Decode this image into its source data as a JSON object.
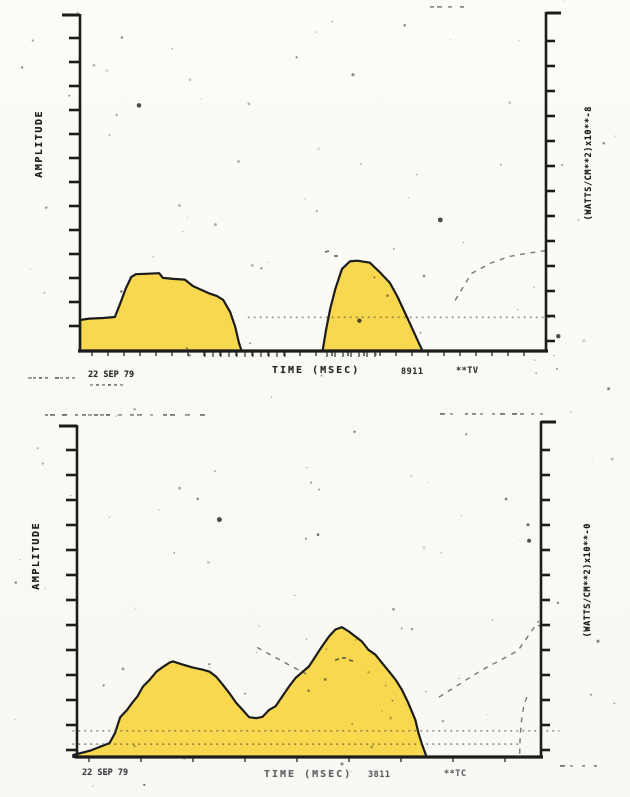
{
  "page": {
    "background": "#fbfaf5"
  },
  "scan": {
    "ink": "#1c1c1c",
    "fill": "#f7d84f",
    "faded_ink": "#62626a"
  },
  "chart_data": [
    {
      "type": "area",
      "left_axis_label": "AMPLITUDE",
      "right_axis_label": "(WATTS/CM**2)x10**-8",
      "x_axis_label": "TIME (MSEC)",
      "date_annotation": "22 SEP 79",
      "code_annotation_1": "8911",
      "code_annotation_2": "**TV",
      "x_range_percent": [
        0,
        100
      ],
      "amplitude_range_fraction": [
        0,
        1
      ],
      "grid": false,
      "series": [
        {
          "name": "pulse-1",
          "points": [
            [
              0,
              0.092
            ],
            [
              2,
              0.096
            ],
            [
              5,
              0.098
            ],
            [
              7.5,
              0.101
            ],
            [
              8.6,
              0.14
            ],
            [
              9.8,
              0.185
            ],
            [
              11,
              0.22
            ],
            [
              12,
              0.228
            ],
            [
              14,
              0.229
            ],
            [
              17,
              0.231
            ],
            [
              17.8,
              0.217
            ],
            [
              20,
              0.214
            ],
            [
              22.5,
              0.212
            ],
            [
              24.2,
              0.193
            ],
            [
              27.9,
              0.17
            ],
            [
              29.4,
              0.163
            ],
            [
              30.7,
              0.152
            ],
            [
              32.2,
              0.116
            ],
            [
              33.3,
              0.072
            ],
            [
              34.1,
              0.025
            ],
            [
              34.6,
              0.004
            ]
          ]
        },
        {
          "name": "pulse-2",
          "points": [
            [
              52.1,
              0.004
            ],
            [
              52.8,
              0.062
            ],
            [
              53.7,
              0.125
            ],
            [
              54.8,
              0.185
            ],
            [
              56.2,
              0.243
            ],
            [
              57.9,
              0.266
            ],
            [
              59.5,
              0.268
            ],
            [
              62.2,
              0.262
            ],
            [
              64.4,
              0.233
            ],
            [
              66.5,
              0.202
            ],
            [
              68.1,
              0.162
            ],
            [
              70.2,
              0.1
            ],
            [
              71.9,
              0.048
            ],
            [
              72.9,
              0.018
            ],
            [
              73.4,
              0.004
            ]
          ]
        }
      ],
      "faint_traces": [
        {
          "name": "background-level-dotted",
          "style": "dotted",
          "points": [
            [
              36,
              0.1
            ],
            [
              103,
              0.1
            ]
          ]
        },
        {
          "name": "rising-dashed-trace",
          "style": "dashed",
          "points": [
            [
              80.5,
              0.15
            ],
            [
              84,
              0.23
            ],
            [
              88,
              0.26
            ],
            [
              92,
              0.28
            ],
            [
              96,
              0.29
            ],
            [
              101,
              0.3
            ]
          ]
        }
      ]
    },
    {
      "type": "area",
      "left_axis_label": "AMPLITUDE",
      "right_axis_label": "(WATTS/CM**2)x10**-0",
      "x_axis_label": "TIME (MSEC)",
      "date_annotation": "22 SEP 79",
      "code_annotation_1": "3811",
      "code_annotation_2": "**TC",
      "x_range_percent": [
        0,
        100
      ],
      "amplitude_range_fraction": [
        0,
        1
      ],
      "grid": false,
      "series": [
        {
          "name": "double-pulse",
          "points": [
            [
              -0.8,
              0.006
            ],
            [
              3,
              0.02
            ],
            [
              7,
              0.042
            ],
            [
              8.2,
              0.072
            ],
            [
              9.3,
              0.12
            ],
            [
              10.8,
              0.142
            ],
            [
              12,
              0.165
            ],
            [
              13,
              0.182
            ],
            [
              14.2,
              0.212
            ],
            [
              15.7,
              0.233
            ],
            [
              17.2,
              0.258
            ],
            [
              18.6,
              0.272
            ],
            [
              20,
              0.285
            ],
            [
              20.7,
              0.288
            ],
            [
              22.7,
              0.279
            ],
            [
              24.9,
              0.27
            ],
            [
              27.1,
              0.263
            ],
            [
              28.6,
              0.257
            ],
            [
              30,
              0.242
            ],
            [
              31.4,
              0.218
            ],
            [
              32.8,
              0.193
            ],
            [
              34.3,
              0.163
            ],
            [
              35.7,
              0.142
            ],
            [
              37.1,
              0.12
            ],
            [
              38.6,
              0.117
            ],
            [
              40,
              0.121
            ],
            [
              41.4,
              0.142
            ],
            [
              42.8,
              0.153
            ],
            [
              44.2,
              0.182
            ],
            [
              45.7,
              0.212
            ],
            [
              47.1,
              0.238
            ],
            [
              48.5,
              0.255
            ],
            [
              50,
              0.273
            ],
            [
              51.4,
              0.303
            ],
            [
              52.8,
              0.333
            ],
            [
              54.3,
              0.363
            ],
            [
              55.7,
              0.384
            ],
            [
              57.1,
              0.391
            ],
            [
              58.6,
              0.378
            ],
            [
              60,
              0.363
            ],
            [
              61.4,
              0.348
            ],
            [
              62.8,
              0.323
            ],
            [
              64.3,
              0.308
            ],
            [
              66.4,
              0.272
            ],
            [
              67.8,
              0.248
            ],
            [
              68.7,
              0.232
            ],
            [
              70,
              0.203
            ],
            [
              71.4,
              0.163
            ],
            [
              72.9,
              0.112
            ],
            [
              73.6,
              0.072
            ],
            [
              74.3,
              0.04
            ],
            [
              75.2,
              0.006
            ]
          ]
        }
      ],
      "faint_traces": [
        {
          "name": "background-level-dotted-1",
          "style": "dotted",
          "points": [
            [
              -1,
              0.079
            ],
            [
              104,
              0.079
            ]
          ]
        },
        {
          "name": "background-level-dotted-2",
          "style": "dotted",
          "points": [
            [
              -1,
              0.039
            ],
            [
              96,
              0.039
            ]
          ]
        },
        {
          "name": "descending-dashed-trace",
          "style": "dashed",
          "points": [
            [
              38.8,
              0.33
            ],
            [
              44,
              0.29
            ],
            [
              49.4,
              0.25
            ]
          ]
        },
        {
          "name": "rising-dashed-trace",
          "style": "dashed",
          "points": [
            [
              78,
              0.18
            ],
            [
              87,
              0.26
            ],
            [
              95,
              0.32
            ],
            [
              99.5,
              0.41
            ]
          ]
        },
        {
          "name": "vertical-dashed-trace",
          "style": "dashed",
          "points": [
            [
              95.4,
              0.01
            ],
            [
              95.5,
              0.06
            ],
            [
              95.8,
              0.11
            ],
            [
              96.3,
              0.155
            ],
            [
              97.2,
              0.19
            ]
          ]
        }
      ]
    }
  ]
}
